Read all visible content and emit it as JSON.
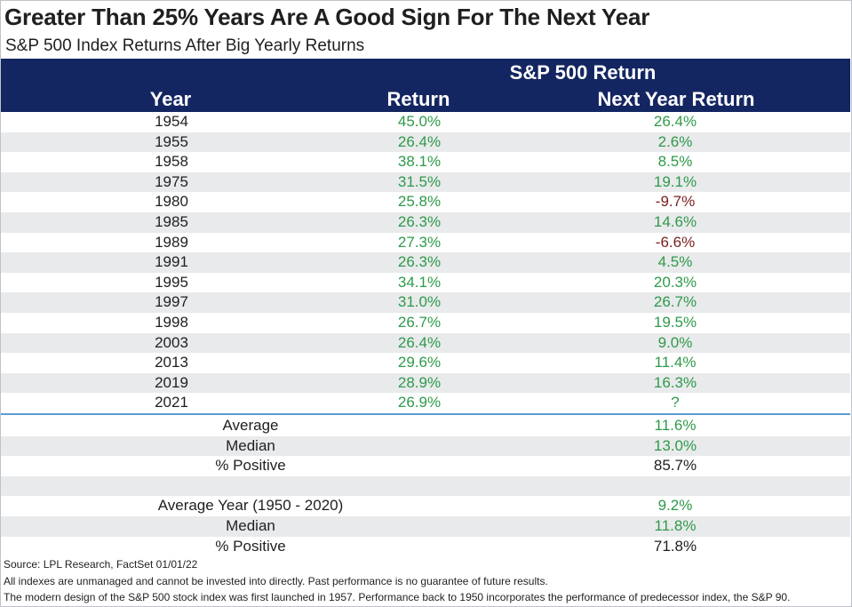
{
  "title": "Greater Than 25% Years Are A Good Sign For The Next Year",
  "subtitle": "S&P 500 Index Returns After Big Yearly Returns",
  "header": {
    "group": "S&P 500 Return",
    "year": "Year",
    "return": "Return",
    "next_year_return": "Next Year Return"
  },
  "rows": [
    {
      "year": "1954",
      "return": "45.0%",
      "next": "26.4%",
      "next_sign": "pos"
    },
    {
      "year": "1955",
      "return": "26.4%",
      "next": "2.6%",
      "next_sign": "pos"
    },
    {
      "year": "1958",
      "return": "38.1%",
      "next": "8.5%",
      "next_sign": "pos"
    },
    {
      "year": "1975",
      "return": "31.5%",
      "next": "19.1%",
      "next_sign": "pos"
    },
    {
      "year": "1980",
      "return": "25.8%",
      "next": "-9.7%",
      "next_sign": "neg"
    },
    {
      "year": "1985",
      "return": "26.3%",
      "next": "14.6%",
      "next_sign": "pos"
    },
    {
      "year": "1989",
      "return": "27.3%",
      "next": "-6.6%",
      "next_sign": "neg"
    },
    {
      "year": "1991",
      "return": "26.3%",
      "next": "4.5%",
      "next_sign": "pos"
    },
    {
      "year": "1995",
      "return": "34.1%",
      "next": "20.3%",
      "next_sign": "pos"
    },
    {
      "year": "1997",
      "return": "31.0%",
      "next": "26.7%",
      "next_sign": "pos"
    },
    {
      "year": "1998",
      "return": "26.7%",
      "next": "19.5%",
      "next_sign": "pos"
    },
    {
      "year": "2003",
      "return": "26.4%",
      "next": "9.0%",
      "next_sign": "pos"
    },
    {
      "year": "2013",
      "return": "29.6%",
      "next": "11.4%",
      "next_sign": "pos"
    },
    {
      "year": "2019",
      "return": "28.9%",
      "next": "16.3%",
      "next_sign": "pos"
    },
    {
      "year": "2021",
      "return": "26.9%",
      "next": "?",
      "next_sign": "pos"
    }
  ],
  "summary": [
    {
      "label": "Average",
      "value": "11.6%",
      "sign": "pos"
    },
    {
      "label": "Median",
      "value": "13.0%",
      "sign": "pos"
    },
    {
      "label": "% Positive",
      "value": "85.7%",
      "sign": "neutral"
    },
    {
      "label": "",
      "value": "",
      "sign": "neutral"
    },
    {
      "label": "Average Year (1950 - 2020)",
      "value": "9.2%",
      "sign": "pos"
    },
    {
      "label": "Median",
      "value": "11.8%",
      "sign": "pos"
    },
    {
      "label": "% Positive",
      "value": "71.8%",
      "sign": "neutral"
    }
  ],
  "footnotes": {
    "source": "Source: LPL Research, FactSet 01/01/22",
    "disclaimer": "All indexes are unmanaged and cannot be invested into directly. Past performance is no guarantee of future results.",
    "history": "The modern design of the S&P 500 stock index was first launched in 1957. Performance back to 1950 incorporates the performance of predecessor index, the S&P 90."
  },
  "colors": {
    "header_band": "#142661",
    "positive": "#2e9a49",
    "negative": "#7b1d1d",
    "row_stripe": "#e9eaec",
    "divider": "#5b9bd0"
  }
}
